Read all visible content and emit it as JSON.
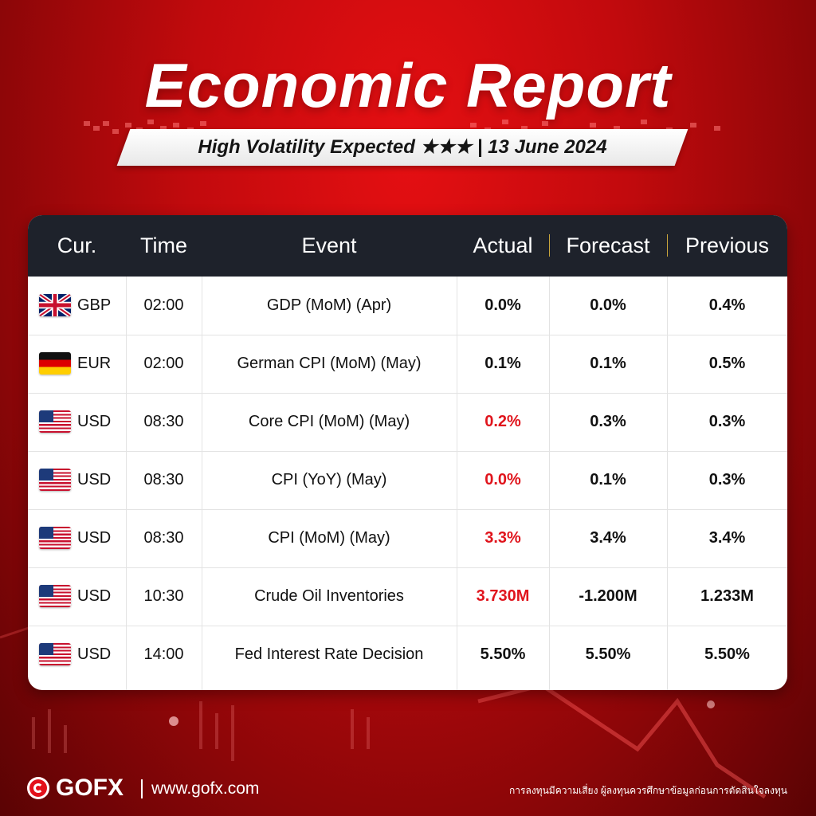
{
  "header": {
    "title": "Economic Report",
    "subtitle": "High Volatility Expected ★★★ | 13 June 2024"
  },
  "table": {
    "columns": [
      "Cur.",
      "Time",
      "Event",
      "Actual",
      "Forecast",
      "Previous"
    ],
    "rows": [
      {
        "flag": "uk-flag-icon",
        "currency": "GBP",
        "time": "02:00",
        "event": "GDP (MoM) (Apr)",
        "actual": "0.0%",
        "forecast": "0.0%",
        "previous": "0.4%",
        "actual_highlight": false
      },
      {
        "flag": "germany-flag-icon",
        "currency": "EUR",
        "time": "02:00",
        "event": "German CPI (MoM) (May)",
        "actual": "0.1%",
        "forecast": "0.1%",
        "previous": "0.5%",
        "actual_highlight": false
      },
      {
        "flag": "us-flag-icon",
        "currency": "USD",
        "time": "08:30",
        "event": "Core CPI (MoM) (May)",
        "actual": "0.2%",
        "forecast": "0.3%",
        "previous": "0.3%",
        "actual_highlight": true
      },
      {
        "flag": "us-flag-icon",
        "currency": "USD",
        "time": "08:30",
        "event": "CPI (YoY) (May)",
        "actual": "0.0%",
        "forecast": "0.1%",
        "previous": "0.3%",
        "actual_highlight": true
      },
      {
        "flag": "us-flag-icon",
        "currency": "USD",
        "time": "08:30",
        "event": "CPI (MoM) (May)",
        "actual": "3.3%",
        "forecast": "3.4%",
        "previous": "3.4%",
        "actual_highlight": true
      },
      {
        "flag": "us-flag-icon",
        "currency": "USD",
        "time": "10:30",
        "event": "Crude Oil Inventories",
        "actual": "3.730M",
        "forecast": "-1.200M",
        "previous": "1.233M",
        "actual_highlight": true
      },
      {
        "flag": "us-flag-icon",
        "currency": "USD",
        "time": "14:00",
        "event": "Fed Interest Rate Decision",
        "actual": "5.50%",
        "forecast": "5.50%",
        "previous": "5.50%",
        "actual_highlight": false
      }
    ]
  },
  "footer": {
    "logo_icon": "gofx-logo-icon",
    "brand": "GOFX",
    "url": "www.gofx.com",
    "disclaimer": "การลงทุนมีความเสี่ยง ผู้ลงทุนควรศึกษาข้อมูลก่อนการตัดสินใจลงทุน"
  },
  "colors": {
    "background": "#c20a0d",
    "header_bg": "#1e222b",
    "header_separator": "#c9a53c",
    "highlight": "#e0141c"
  }
}
